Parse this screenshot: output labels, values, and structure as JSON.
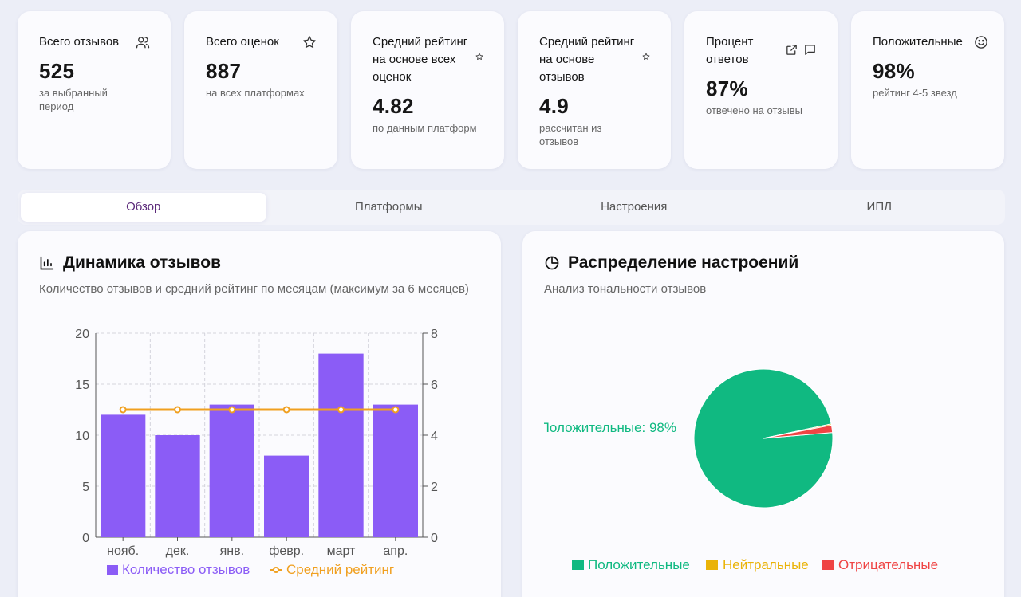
{
  "stats": [
    {
      "title": "Всего отзывов",
      "value": "525",
      "sub": "за выбранный период",
      "icon": "users-icon"
    },
    {
      "title": "Всего оценок",
      "value": "887",
      "sub": "на всех платформах",
      "icon": "star-icon"
    },
    {
      "title": "Средний рейтинг на основе всех оценок",
      "value": "4.82",
      "sub": "по данным платформ",
      "icon": "small-star-icon"
    },
    {
      "title": "Средний рейтинг на основе отзывов",
      "value": "4.9",
      "sub": "рассчитан из отзывов",
      "icon": "small-star-icon"
    },
    {
      "title": "Процент ответов",
      "value": "87%",
      "sub": "отвечено на отзывы",
      "icon": "external-link-icon"
    },
    {
      "title": "Положительные",
      "value": "98%",
      "sub": "рейтинг 4-5 звезд",
      "icon": "smile-icon"
    }
  ],
  "tabs": [
    {
      "label": "Обзор",
      "active": true
    },
    {
      "label": "Платформы",
      "active": false
    },
    {
      "label": "Настроения",
      "active": false
    },
    {
      "label": "ИПЛ",
      "active": false
    }
  ],
  "dynamics": {
    "title": "Динамика отзывов",
    "description": "Количество отзывов и средний рейтинг по месяцам (максимум за 6 месяцев)"
  },
  "sentiment": {
    "title": "Распределение настроений",
    "description": "Анализ тональности отзывов"
  },
  "colors": {
    "bar": "#8b5cf6",
    "line": "#f0a020",
    "positive": "#10b981",
    "neutral": "#eab308",
    "negative": "#ef4444",
    "accent": "#5b2a7a"
  },
  "chart_data": [
    {
      "type": "bar",
      "categories": [
        "нояб.",
        "дек.",
        "янв.",
        "февр.",
        "март",
        "апр."
      ],
      "series": [
        {
          "name": "Количество отзывов",
          "type": "bar",
          "axis": "left",
          "values": [
            12,
            10,
            13,
            8,
            18,
            13
          ]
        },
        {
          "name": "Средний рейтинг",
          "type": "line",
          "axis": "right",
          "values": [
            5,
            5,
            5,
            5,
            5,
            5
          ]
        }
      ],
      "y_left": {
        "ticks": [
          "0",
          "5",
          "10",
          "15",
          "20"
        ],
        "range": [
          0,
          20
        ]
      },
      "y_right": {
        "ticks": [
          "0",
          "2",
          "4",
          "6",
          "8"
        ],
        "range": [
          0,
          8
        ]
      },
      "grid": true,
      "legend": "bottom"
    },
    {
      "type": "pie",
      "slices": [
        {
          "name": "Положительные",
          "value": 98
        },
        {
          "name": "Нейтральные",
          "value": 0.3
        },
        {
          "name": "Отрицательные",
          "value": 1.7
        }
      ],
      "label": "Положительные: 98%",
      "legend": "bottom"
    }
  ]
}
